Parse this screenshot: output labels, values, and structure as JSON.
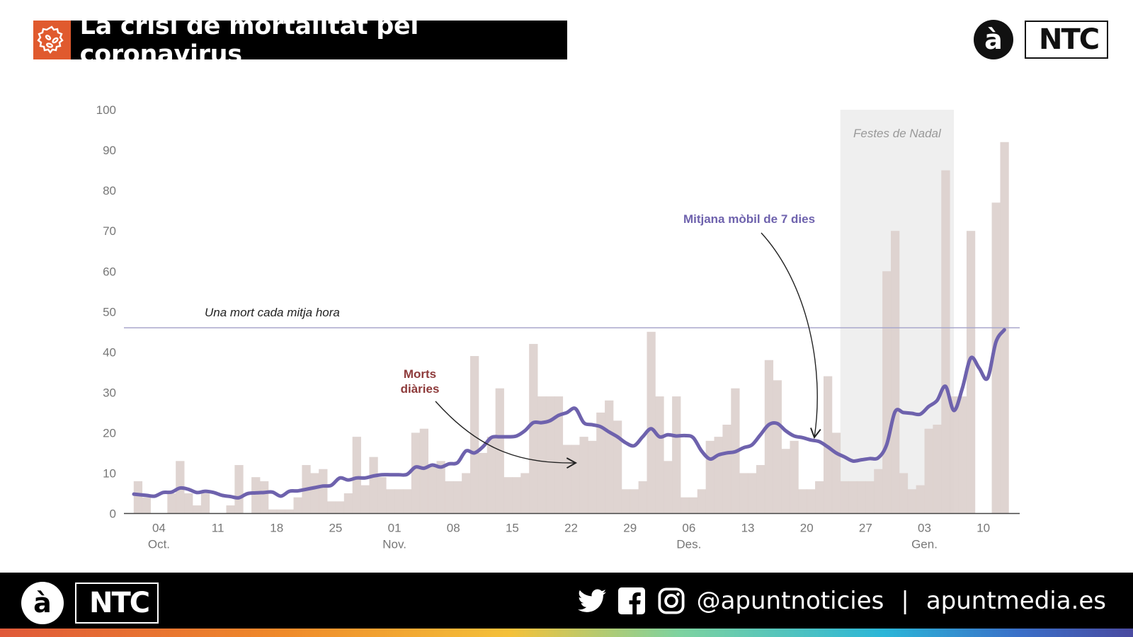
{
  "header": {
    "title": "La crisi de mortalitat pel coronavirus",
    "icon": "virus-icon",
    "accent_color": "#e05a2e",
    "logo_circle": "à",
    "logo_text": "NTC"
  },
  "footer": {
    "logo_circle": "à",
    "logo_text": "NTC",
    "social_icons": [
      "twitter-icon",
      "facebook-icon",
      "instagram-icon"
    ],
    "handle": "@apuntnoticies",
    "separator": "|",
    "website": "apuntmedia.es"
  },
  "chart_data": {
    "type": "bar",
    "start_date": "2020-10-01",
    "end_date": "2021-01-12",
    "ylim": [
      0,
      100
    ],
    "yticks": [
      0,
      10,
      20,
      30,
      40,
      50,
      60,
      70,
      80,
      90,
      100
    ],
    "xticks": [
      {
        "date": "2020-10-04",
        "label": "04",
        "sublabel": "Oct."
      },
      {
        "date": "2020-10-11",
        "label": "11",
        "sublabel": ""
      },
      {
        "date": "2020-10-18",
        "label": "18",
        "sublabel": ""
      },
      {
        "date": "2020-10-25",
        "label": "25",
        "sublabel": ""
      },
      {
        "date": "2020-11-01",
        "label": "01",
        "sublabel": "Nov."
      },
      {
        "date": "2020-11-08",
        "label": "08",
        "sublabel": ""
      },
      {
        "date": "2020-11-15",
        "label": "15",
        "sublabel": ""
      },
      {
        "date": "2020-11-22",
        "label": "22",
        "sublabel": ""
      },
      {
        "date": "2020-11-29",
        "label": "29",
        "sublabel": ""
      },
      {
        "date": "2020-12-06",
        "label": "06",
        "sublabel": "Des."
      },
      {
        "date": "2020-12-13",
        "label": "13",
        "sublabel": ""
      },
      {
        "date": "2020-12-20",
        "label": "20",
        "sublabel": ""
      },
      {
        "date": "2020-12-27",
        "label": "27",
        "sublabel": ""
      },
      {
        "date": "2021-01-03",
        "label": "03",
        "sublabel": "Gen."
      },
      {
        "date": "2021-01-10",
        "label": "10",
        "sublabel": ""
      }
    ],
    "series": [
      {
        "name": "Morts diàries",
        "type": "bar",
        "color": "#dccfcc",
        "label_color": "#8e3b3b",
        "values": [
          8,
          4,
          0,
          0,
          5,
          13,
          5,
          2,
          5,
          0,
          0,
          2,
          12,
          0,
          9,
          8,
          1,
          1,
          1,
          4,
          12,
          10,
          11,
          3,
          3,
          5,
          19,
          7,
          14,
          9,
          6,
          6,
          6,
          20,
          21,
          12,
          13,
          8,
          8,
          10,
          39,
          15,
          19,
          31,
          9,
          9,
          10,
          42,
          29,
          29,
          29,
          17,
          17,
          19,
          18,
          25,
          28,
          23,
          6,
          6,
          8,
          45,
          29,
          13,
          29,
          4,
          4,
          6,
          18,
          19,
          22,
          31,
          10,
          10,
          12,
          38,
          33,
          16,
          18,
          6,
          6,
          8,
          34,
          20,
          8,
          8,
          8,
          8,
          11,
          60,
          70,
          10,
          6,
          7,
          21,
          22,
          85,
          29,
          29,
          70,
          0,
          0,
          77,
          92
        ]
      },
      {
        "name": "Mitjana mòbil de 7 dies",
        "type": "line",
        "color": "#6e62ad",
        "values": [
          4.8,
          4.5,
          4.3,
          5.2,
          5.3,
          6.3,
          6.0,
          5.2,
          5.5,
          5.2,
          4.5,
          4.2,
          3.9,
          4.9,
          5.1,
          5.2,
          5.3,
          4.3,
          5.5,
          5.6,
          6.0,
          6.4,
          6.8,
          7.0,
          8.8,
          8.3,
          8.8,
          8.8,
          9.3,
          9.6,
          9.6,
          9.6,
          9.7,
          11.5,
          11.2,
          12.0,
          11.5,
          12.3,
          12.6,
          15.5,
          15.0,
          16.5,
          18.8,
          19.0,
          19.0,
          19.2,
          20.5,
          22.5,
          22.5,
          23.0,
          24.3,
          25.0,
          26.0,
          22.5,
          22.0,
          21.5,
          20.2,
          19.0,
          17.5,
          16.8,
          19.0,
          21.0,
          19.0,
          19.5,
          19.2,
          19.3,
          18.8,
          15.5,
          13.5,
          14.5,
          15.0,
          15.3,
          16.3,
          17.0,
          19.5,
          22.0,
          22.3,
          20.5,
          19.2,
          18.8,
          18.2,
          17.8,
          16.5,
          15.0,
          14.0,
          13.0,
          13.3,
          13.6,
          13.8,
          17.0,
          25.2,
          25.0,
          24.8,
          24.6,
          26.5,
          28.0,
          31.5,
          25.5,
          31.0,
          38.5,
          36.0,
          33.5,
          42.5,
          45.5
        ]
      }
    ],
    "reference_line": {
      "value": 46,
      "label": "Una mort cada mitja hora",
      "color": "#a9a7cc"
    },
    "highlight": {
      "label": "Festes de Nadal",
      "from": "2020-12-24",
      "to": "2021-01-06"
    },
    "grid": false,
    "legend": "none (inline annotations)"
  }
}
